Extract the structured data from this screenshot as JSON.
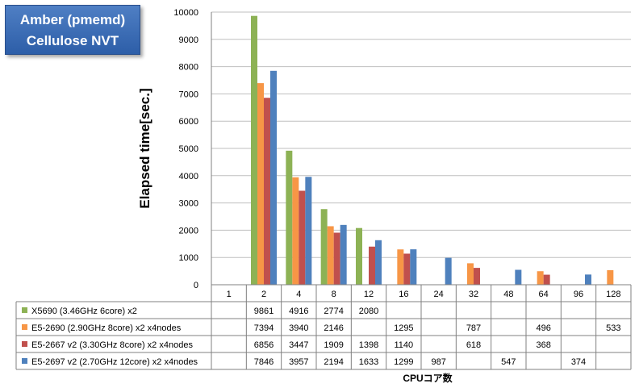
{
  "title": {
    "line1": "Amber (pmemd)",
    "line2": "Cellulose  NVT"
  },
  "chart_data": {
    "type": "bar",
    "ylabel": "Elapsed time[sec.]",
    "xlabel": "CPUコア数",
    "ylim": [
      0,
      10000
    ],
    "yticks": [
      "0",
      "1000",
      "2000",
      "3000",
      "4000",
      "5000",
      "6000",
      "7000",
      "8000",
      "9000",
      "10000"
    ],
    "categories": [
      "1",
      "2",
      "4",
      "8",
      "12",
      "16",
      "24",
      "32",
      "48",
      "64",
      "96",
      "128"
    ],
    "grid": true,
    "legend": "data-table",
    "series": [
      {
        "name": "X5690 (3.46GHz 6core) x2",
        "color": "#8db255",
        "values": [
          null,
          9861,
          4916,
          2774,
          2080,
          null,
          null,
          null,
          null,
          null,
          null,
          null
        ]
      },
      {
        "name": "E5-2690 (2.90GHz 8core) x2 x4nodes",
        "color": "#f79646",
        "values": [
          null,
          7394,
          3940,
          2146,
          null,
          1295,
          null,
          787,
          null,
          496,
          null,
          533
        ]
      },
      {
        "name": "E5-2667 v2 (3.30GHz 8core) x2 x4nodes",
        "color": "#c0504d",
        "values": [
          null,
          6856,
          3447,
          1909,
          1398,
          1140,
          null,
          618,
          null,
          368,
          null,
          null
        ]
      },
      {
        "name": "E5-2697 v2 (2.70GHz 12core) x2 x4nodes",
        "color": "#4f81bd",
        "values": [
          null,
          7846,
          3957,
          2194,
          1633,
          1299,
          987,
          null,
          547,
          null,
          374,
          null
        ]
      }
    ]
  }
}
